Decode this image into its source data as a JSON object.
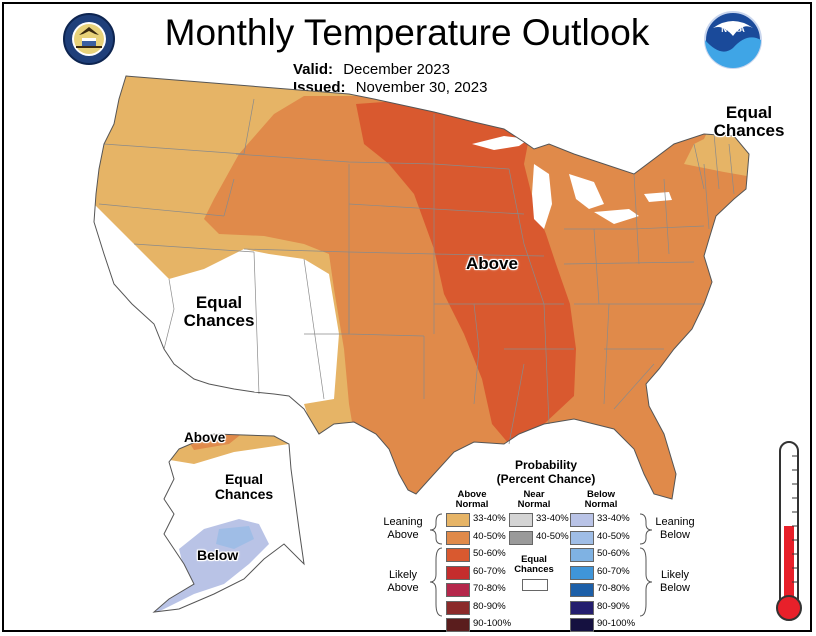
{
  "title": "Monthly Temperature Outlook",
  "valid_label": "Valid:",
  "valid_value": "December 2023",
  "issued_label": "Issued:",
  "issued_value": "November 30, 2023",
  "map_labels": {
    "above": "Above",
    "equal_west_1": "Equal",
    "equal_west_2": "Chances",
    "equal_ne_1": "Equal",
    "equal_ne_2": "Chances",
    "ak_above": "Above",
    "ak_equal_1": "Equal",
    "ak_equal_2": "Chances",
    "ak_below": "Below"
  },
  "legend": {
    "title_1": "Probability",
    "title_2": "(Percent Chance)",
    "col_above": [
      "Above",
      "Normal"
    ],
    "col_near": [
      "Near",
      "Normal"
    ],
    "col_below": [
      "Below",
      "Normal"
    ],
    "leaning_above": [
      "Leaning",
      "Above"
    ],
    "likely_above": [
      "Likely",
      "Above"
    ],
    "leaning_below": [
      "Leaning",
      "Below"
    ],
    "likely_below": [
      "Likely",
      "Below"
    ],
    "equal": [
      "Equal",
      "Chances"
    ],
    "above_bins": [
      {
        "label": "33-40%",
        "color": "#e6b466"
      },
      {
        "label": "40-50%",
        "color": "#e08a4a"
      },
      {
        "label": "50-60%",
        "color": "#d9592f"
      },
      {
        "label": "60-70%",
        "color": "#c52d2d"
      },
      {
        "label": "70-80%",
        "color": "#b5274b"
      },
      {
        "label": "80-90%",
        "color": "#8b2a2a"
      },
      {
        "label": "90-100%",
        "color": "#5a1d1d"
      }
    ],
    "near_bins": [
      {
        "label": "33-40%",
        "color": "#d4d4d4"
      },
      {
        "label": "40-50%",
        "color": "#9a9a9a"
      }
    ],
    "below_bins": [
      {
        "label": "33-40%",
        "color": "#b9c3e6"
      },
      {
        "label": "40-50%",
        "color": "#9fbde6"
      },
      {
        "label": "50-60%",
        "color": "#7fb2e3"
      },
      {
        "label": "60-70%",
        "color": "#3f95d9"
      },
      {
        "label": "70-80%",
        "color": "#1c5fa8"
      },
      {
        "label": "80-90%",
        "color": "#241e6e"
      },
      {
        "label": "90-100%",
        "color": "#151140"
      }
    ]
  },
  "colors": {
    "above_33_40": "#e6b466",
    "above_40_50": "#e08a4a",
    "above_50_60": "#d9592f",
    "below_33_40": "#b9c3e6",
    "thermometer_red": "#e8202a"
  },
  "icons": [
    "doc-seal-icon",
    "noaa-logo-icon",
    "thermometer-icon"
  ]
}
